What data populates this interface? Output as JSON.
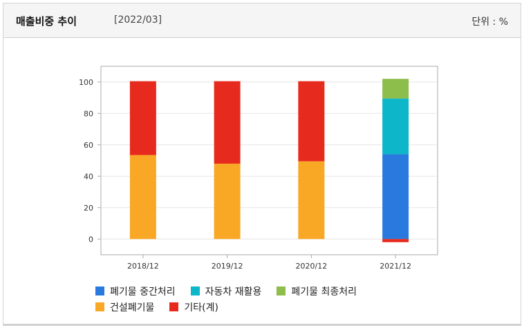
{
  "header": {
    "title": "매출비중 추이",
    "period": "[2022/03]",
    "unit": "단위 : %"
  },
  "colors": {
    "waste_intermediate": "#2a79de",
    "car_recycling": "#0db6c8",
    "waste_final": "#8dbd4a",
    "construction_waste": "#f9a825",
    "other": "#e62b1e"
  },
  "chart_data": {
    "type": "bar",
    "stacked": true,
    "categories": [
      "2018/12",
      "2019/12",
      "2020/12",
      "2021/12"
    ],
    "series": [
      {
        "name": "폐기물 중간처리",
        "key": "waste_intermediate",
        "values": [
          0,
          0,
          0,
          54
        ]
      },
      {
        "name": "자동차 재활용",
        "key": "car_recycling",
        "values": [
          0,
          0,
          0,
          35.5
        ]
      },
      {
        "name": "폐기물 최종처리",
        "key": "waste_final",
        "values": [
          0,
          0,
          0,
          12.5
        ]
      },
      {
        "name": "건설폐기물",
        "key": "construction_waste",
        "values": [
          53.5,
          48,
          49.5,
          0
        ]
      },
      {
        "name": "기타(계)",
        "key": "other",
        "values": [
          47,
          52.5,
          51,
          -2
        ]
      }
    ],
    "yticks": [
      0,
      20,
      40,
      60,
      80,
      100
    ],
    "ylim": [
      -10,
      110
    ],
    "grid": true,
    "legend_position": "bottom"
  },
  "legend_rows": [
    [
      "waste_intermediate",
      "car_recycling",
      "waste_final"
    ],
    [
      "construction_waste",
      "other"
    ]
  ]
}
